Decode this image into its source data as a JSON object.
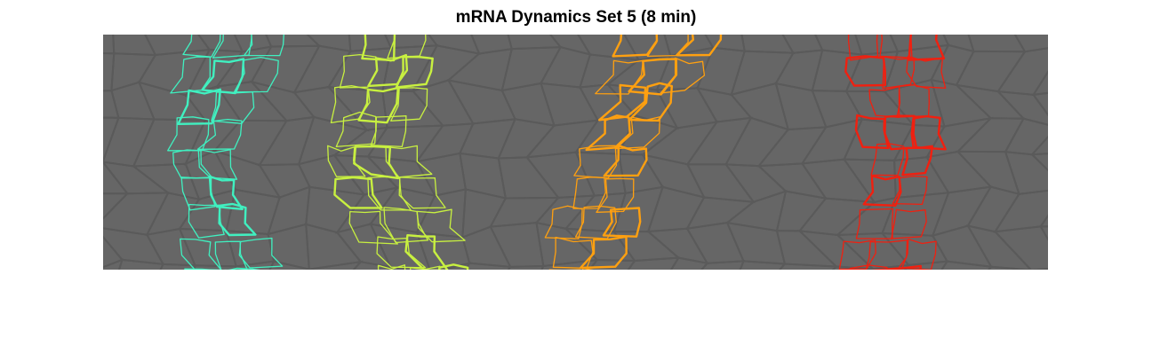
{
  "title": "mRNA Dynamics Set 5 (8 min)",
  "image": {
    "description_name": "tissue-segmentation",
    "background_color": "#666666",
    "cell_edge_color": "#5a5a5a",
    "stripes": [
      {
        "name": "stripe-1",
        "color": "#40f0c0"
      },
      {
        "name": "stripe-2",
        "color": "#c8f040"
      },
      {
        "name": "stripe-3",
        "color": "#ffa010"
      },
      {
        "name": "stripe-4",
        "color": "#f02010"
      }
    ]
  }
}
